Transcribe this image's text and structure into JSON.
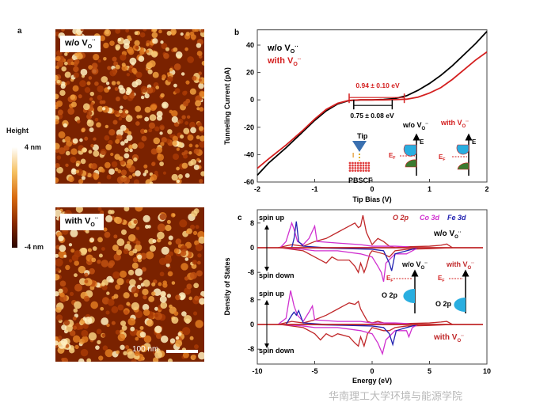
{
  "panel_a": {
    "label": "a",
    "colorbar": {
      "title": "Height",
      "max": "4 nm",
      "min": "-4 nm",
      "colors": [
        "#ffffff",
        "#f5c060",
        "#d86a10",
        "#8a2a00",
        "#2a0500"
      ]
    },
    "images": [
      {
        "tag": "w/o V",
        "sub": "O",
        "sup": "··"
      },
      {
        "tag": "with V",
        "sub": "O",
        "sup": "··"
      }
    ],
    "scale_bar": "100 nm"
  },
  "chart_data": [
    {
      "panel": "b",
      "type": "line",
      "xlabel": "Tip Bias (V)",
      "ylabel": "Tunneling Current  (pA)",
      "xlim": [
        -2,
        2
      ],
      "ylim": [
        -60,
        50
      ],
      "xticks": [
        "-2",
        "-1",
        "0",
        "1",
        "2"
      ],
      "yticks": [
        "40",
        "20",
        "0",
        "-20",
        "-40",
        "-60"
      ],
      "legend": [
        "w/o  V",
        "with  V"
      ],
      "legend_placement": "top-left",
      "series": [
        {
          "name": "w/o  V",
          "color": "#000000",
          "x": [
            -2,
            -1.8,
            -1.5,
            -1.2,
            -1,
            -0.8,
            -0.6,
            -0.4,
            -0.2,
            0,
            0.2,
            0.4,
            0.6,
            0.8,
            1,
            1.2,
            1.4,
            1.6,
            1.8,
            2
          ],
          "y": [
            -55,
            -46,
            -35,
            -23,
            -15,
            -8,
            -3,
            -0.5,
            0,
            0,
            0.3,
            1,
            3,
            7,
            12,
            18,
            25,
            33,
            41,
            50
          ]
        },
        {
          "name": "with  V",
          "color": "#d42020",
          "x": [
            -2,
            -1.8,
            -1.5,
            -1.2,
            -1,
            -0.8,
            -0.6,
            -0.4,
            -0.2,
            0,
            0.2,
            0.4,
            0.6,
            0.8,
            1,
            1.2,
            1.4,
            1.6,
            1.8,
            2
          ],
          "y": [
            -50,
            -43,
            -33,
            -22,
            -14,
            -7,
            -2.5,
            -0.3,
            0,
            0,
            0,
            0.2,
            0.5,
            2,
            5,
            9,
            15,
            22,
            29,
            35
          ]
        }
      ],
      "annotations": {
        "gap_with": "0.94 ± 0.10 eV",
        "gap_without": "0.75 ± 0.08 eV",
        "gap_with_range": [
          -0.4,
          0.56
        ],
        "gap_without_range": [
          -0.32,
          0.35
        ],
        "tip": "Tip",
        "current": "I",
        "sample": "PBSCF",
        "band_wo": "w/o V",
        "band_with": "with V",
        "energy": "E",
        "fermi": "E",
        "fermi_sub": "F"
      }
    },
    {
      "panel": "c",
      "type": "line",
      "xlabel": "Energy (eV)",
      "ylabel": "Density of States",
      "xlim": [
        -10,
        10
      ],
      "xticks": [
        "-10",
        "-5",
        "0",
        "5",
        "10"
      ],
      "yticks": [
        "8",
        "0",
        "-8"
      ],
      "legend": [
        "O 2p",
        "Co 3d",
        "Fe 3d"
      ],
      "legend_colors": [
        "#c0282a",
        "#d030d0",
        "#2020b0"
      ],
      "legend_placement": "top-right",
      "labels": {
        "spin_up": "spin up",
        "spin_down": "spin down",
        "wo": "w/o V",
        "with": "with V",
        "o2p": "O 2p",
        "fermi": "E",
        "fermi_sub": "F"
      },
      "subplots": [
        {
          "name": "w/o V",
          "series": [
            {
              "name": "O 2p up",
              "color": "#c0282a",
              "x": [
                -8.2,
                -7,
                -6,
                -5,
                -4,
                -3,
                -2.5,
                -2,
                -1.5,
                -1.2,
                -1,
                -0.8,
                -0.5,
                0,
                0.5,
                1,
                1.5,
                2,
                3,
                5,
                6,
                6.5,
                7
              ],
              "y": [
                0,
                1,
                0.5,
                2,
                3,
                5,
                6,
                7,
                8,
                6.5,
                7,
                10.5,
                5,
                1,
                3,
                2,
                0.5,
                0,
                0.3,
                0.5,
                0.8,
                1.2,
                0
              ]
            },
            {
              "name": "O 2p down",
              "color": "#c0282a",
              "x": [
                -8,
                -6,
                -5,
                -4.5,
                -4,
                -3.5,
                -3,
                -2,
                -1.5,
                -1.2,
                -1,
                -0.7,
                -0.5,
                -0.2,
                0,
                1,
                1.5,
                2,
                3,
                5,
                7
              ],
              "y": [
                0,
                -1,
                -3,
                -4,
                -5,
                -3,
                -4,
                -4,
                -6,
                -8,
                -5,
                -8,
                -6,
                -2,
                -1,
                -2,
                -3,
                -1,
                -0.5,
                -0.3,
                0
              ]
            },
            {
              "name": "Co 3d up",
              "color": "#d030d0",
              "x": [
                -8,
                -7.5,
                -7,
                -6.8,
                -6.5,
                -6,
                -5.5,
                -5,
                -4.8,
                -3,
                -1,
                0,
                1,
                2,
                3,
                3.5
              ],
              "y": [
                0,
                2,
                8,
                6,
                2,
                1,
                3,
                7,
                2,
                1.5,
                1,
                0.5,
                0.5,
                0.5,
                0.3,
                0
              ]
            },
            {
              "name": "Co 3d down",
              "color": "#d030d0",
              "x": [
                -8,
                -6,
                -5,
                -3,
                -1,
                0,
                0.5,
                0.8,
                1,
                1.2,
                2,
                3,
                3.5,
                4
              ],
              "y": [
                0,
                -0.5,
                -1,
                -1,
                -2,
                -3,
                -6,
                -8,
                -11,
                -5,
                -2,
                -2,
                -1,
                0
              ]
            },
            {
              "name": "Fe 3d up",
              "color": "#2020b0",
              "x": [
                -7,
                -6.8,
                -6.6,
                -6.4,
                -6,
                -4,
                0,
                2
              ],
              "y": [
                0,
                3,
                8.5,
                2,
                0.5,
                0,
                0,
                0
              ]
            },
            {
              "name": "Fe 3d down",
              "color": "#2020b0",
              "x": [
                -6,
                -2,
                0,
                1,
                1.5,
                1.7,
                2,
                3,
                4
              ],
              "y": [
                0,
                -0.3,
                -0.5,
                -1,
                -5,
                -7.5,
                -2,
                -1,
                0
              ]
            }
          ]
        },
        {
          "name": "with V",
          "series": [
            {
              "name": "O 2p up",
              "color": "#c0282a",
              "x": [
                -8.2,
                -7,
                -6,
                -5,
                -4,
                -3,
                -2.5,
                -2,
                -1.5,
                -1.2,
                -1,
                -0.7,
                -0.4,
                0,
                0.5,
                1,
                2,
                3,
                5,
                6,
                6.5,
                7
              ],
              "y": [
                0,
                1,
                0.5,
                1.5,
                3,
                5,
                6,
                7,
                6.5,
                7.5,
                5,
                3,
                1,
                0.5,
                1,
                0.5,
                0.2,
                0.3,
                0.5,
                0.8,
                1,
                0
              ]
            },
            {
              "name": "O 2p down",
              "color": "#c0282a",
              "x": [
                -8,
                -6,
                -5,
                -4.5,
                -4,
                -3.5,
                -3,
                -2,
                -1.5,
                -1.2,
                -1,
                -0.7,
                -0.4,
                0,
                1,
                1.5,
                2,
                3,
                5,
                7
              ],
              "y": [
                0,
                -1,
                -3,
                -5,
                -3,
                -4,
                -3,
                -4,
                -6,
                -7,
                -4,
                -7,
                -3,
                -1,
                -2,
                -2,
                -1,
                -0.5,
                -0.3,
                0
              ]
            },
            {
              "name": "Co 3d up",
              "color": "#d030d0",
              "x": [
                -8.2,
                -7.5,
                -7.1,
                -6.8,
                -6.5,
                -6,
                -5.5,
                -5.2,
                -5,
                -3,
                -1,
                0,
                1,
                2,
                3,
                3.5
              ],
              "y": [
                0,
                2,
                11,
                6,
                3,
                1,
                4,
                6,
                1.5,
                1,
                1,
                0.5,
                0.5,
                0.5,
                0.3,
                0
              ]
            },
            {
              "name": "Co 3d down",
              "color": "#d030d0",
              "x": [
                -8,
                -6,
                -5,
                -3,
                -1,
                0,
                0.5,
                0.9,
                1.2,
                2,
                3,
                3.2,
                3.5,
                4
              ],
              "y": [
                0,
                -0.5,
                -1,
                -1,
                -2,
                -3,
                -6,
                -9.5,
                -5,
                -2,
                -2,
                -4,
                -1,
                0
              ]
            },
            {
              "name": "Fe 3d up",
              "color": "#2020b0",
              "x": [
                -7.5,
                -7,
                -6.8,
                -6.6,
                -6.4,
                -6,
                -4,
                0,
                2
              ],
              "y": [
                0,
                3,
                4,
                3,
                4.5,
                0.5,
                0,
                0,
                0
              ]
            },
            {
              "name": "Fe 3d down",
              "color": "#2020b0",
              "x": [
                -6,
                -2,
                0,
                1,
                1.5,
                1.8,
                2.1,
                3,
                4
              ],
              "y": [
                0,
                -0.3,
                -0.5,
                -1,
                -3,
                -6.5,
                -2,
                -1,
                0
              ]
            }
          ]
        }
      ]
    }
  ],
  "watermark": "华南理工大学环境与能源学院"
}
